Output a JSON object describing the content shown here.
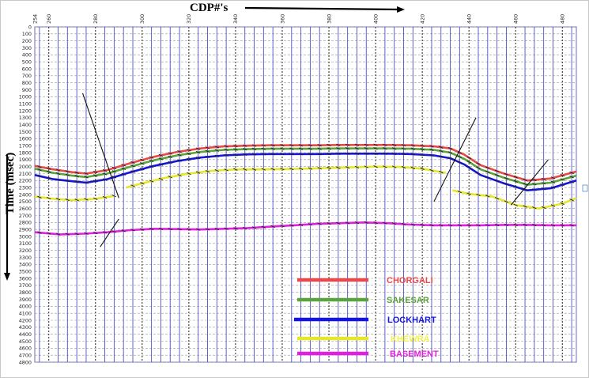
{
  "title": "CDP#'s",
  "ylabel": "Time (msec)",
  "x_ticks": [
    "254",
    "260",
    "280",
    "300",
    "320",
    "340",
    "360",
    "380",
    "400",
    "420",
    "440",
    "460",
    "480"
  ],
  "y_ticks": [
    "0",
    "100",
    "200",
    "300",
    "400",
    "500",
    "600",
    "700",
    "800",
    "900",
    "1000",
    "1100",
    "1200",
    "1300",
    "1400",
    "1500",
    "1600",
    "1700",
    "1800",
    "1900",
    "2000",
    "2100",
    "2200",
    "2300",
    "2400",
    "2500",
    "2600",
    "2700",
    "2800",
    "2900",
    "3000",
    "3100",
    "3200",
    "3300",
    "3400",
    "3500",
    "3600",
    "3700",
    "3800",
    "3900",
    "4000",
    "4100",
    "4200",
    "4300",
    "4400",
    "4500",
    "4600",
    "4700",
    "4800"
  ],
  "legend": [
    {
      "key": "chorgali",
      "label": "CHORGALI",
      "line_color": "#e8494a",
      "text_color": "#e8494a"
    },
    {
      "key": "sakesar",
      "label": "SAKESAR",
      "line_color": "#5ba33b",
      "text_color": "#5ba33b"
    },
    {
      "key": "lockhart",
      "label": "LOCKHART",
      "line_color": "#1616d8",
      "text_color": "#1616d8"
    },
    {
      "key": "khewra",
      "label": "KHEWRA",
      "line_color": "#e6e62a",
      "text_color": "#f2f24a"
    },
    {
      "key": "basement",
      "label": "BASEMENT",
      "line_color": "#e21ee2",
      "text_color": "#e21ee2"
    }
  ],
  "chart_data": {
    "type": "line",
    "title": "CDP#'s",
    "xlabel": "CDP#'s",
    "ylabel": "Time (msec)",
    "xlim": [
      254,
      486
    ],
    "ylim": [
      0,
      4800
    ],
    "y_reversed": true,
    "grid": true,
    "legend_position": "bottom-center",
    "series": [
      {
        "name": "CHORGALI",
        "color": "#e8494a",
        "segments": [
          {
            "x": [
              254,
              262,
              270,
              276,
              285,
              295,
              305,
              315,
              325,
              335,
              345,
              355,
              365,
              375,
              385,
              395,
              405,
              415,
              425,
              432,
              438,
              445,
              455,
              465,
              475,
              486
            ],
            "y": [
              1990,
              2040,
              2080,
              2100,
              2050,
              1950,
              1860,
              1790,
              1740,
              1710,
              1700,
              1695,
              1695,
              1695,
              1690,
              1690,
              1690,
              1695,
              1710,
              1740,
              1830,
              1980,
              2100,
              2200,
              2170,
              2070
            ]
          }
        ]
      },
      {
        "name": "SAKESAR",
        "color": "#5ba33b",
        "segments": [
          {
            "x": [
              254,
              262,
              270,
              276,
              285,
              295,
              305,
              315,
              325,
              335,
              345,
              355,
              365,
              375,
              385,
              395,
              405,
              415,
              425,
              432,
              438,
              445,
              455,
              465,
              475,
              486
            ],
            "y": [
              2030,
              2090,
              2130,
              2150,
              2100,
              2000,
              1910,
              1840,
              1790,
              1760,
              1750,
              1745,
              1745,
              1745,
              1740,
              1740,
              1740,
              1745,
              1760,
              1800,
              1890,
              2040,
              2160,
              2260,
              2230,
              2130
            ]
          }
        ]
      },
      {
        "name": "LOCKHART",
        "color": "#1616d8",
        "segments": [
          {
            "x": [
              254,
              262,
              270,
              276,
              285,
              295,
              305,
              315,
              325,
              335,
              345,
              355,
              365,
              375,
              385,
              395,
              405,
              415,
              425,
              432,
              438,
              445,
              455,
              465,
              475,
              486
            ],
            "y": [
              2120,
              2180,
              2210,
              2230,
              2180,
              2080,
              1990,
              1920,
              1870,
              1840,
              1825,
              1820,
              1820,
              1820,
              1815,
              1815,
              1815,
              1820,
              1840,
              1880,
              1970,
              2120,
              2240,
              2340,
              2310,
              2200
            ]
          }
        ]
      },
      {
        "name": "KHEWRA",
        "color": "#e6e62a",
        "segments": [
          {
            "x": [
              254,
              262,
              270,
              280,
              288
            ],
            "y": [
              2430,
              2460,
              2480,
              2460,
              2420
            ]
          },
          {
            "x": [
              293,
              300,
              310,
              320,
              330,
              340,
              350,
              360,
              370,
              380,
              390,
              400,
              410,
              420,
              430
            ],
            "y": [
              2300,
              2240,
              2160,
              2100,
              2060,
              2040,
              2040,
              2035,
              2030,
              2020,
              2010,
              2000,
              2005,
              2030,
              2090
            ]
          },
          {
            "x": [
              433,
              440,
              450,
              460,
              470,
              480,
              486
            ],
            "y": [
              2340,
              2390,
              2430,
              2550,
              2600,
              2530,
              2450
            ]
          }
        ]
      },
      {
        "name": "BASEMENT",
        "color": "#e21ee2",
        "segments": [
          {
            "x": [
              254,
              265,
              275,
              285,
              295,
              305,
              315,
              325,
              335,
              345,
              355,
              365,
              375,
              385,
              395,
              405,
              415,
              425,
              435,
              445,
              455,
              465,
              475,
              486
            ],
            "y": [
              2940,
              2970,
              2960,
              2940,
              2910,
              2890,
              2895,
              2900,
              2890,
              2880,
              2860,
              2840,
              2820,
              2810,
              2800,
              2810,
              2830,
              2840,
              2840,
              2840,
              2835,
              2835,
              2840,
              2840
            ]
          }
        ]
      }
    ],
    "annotations": [
      {
        "type": "fault",
        "x": [
          274.5,
          290
        ],
        "y": [
          950,
          2450
        ]
      },
      {
        "type": "fault",
        "x": [
          290,
          282
        ],
        "y": [
          2750,
          3150
        ]
      },
      {
        "type": "fault",
        "x": [
          443,
          425
        ],
        "y": [
          1300,
          2500
        ]
      },
      {
        "type": "fault",
        "x": [
          474,
          458
        ],
        "y": [
          1900,
          2550
        ]
      }
    ]
  }
}
